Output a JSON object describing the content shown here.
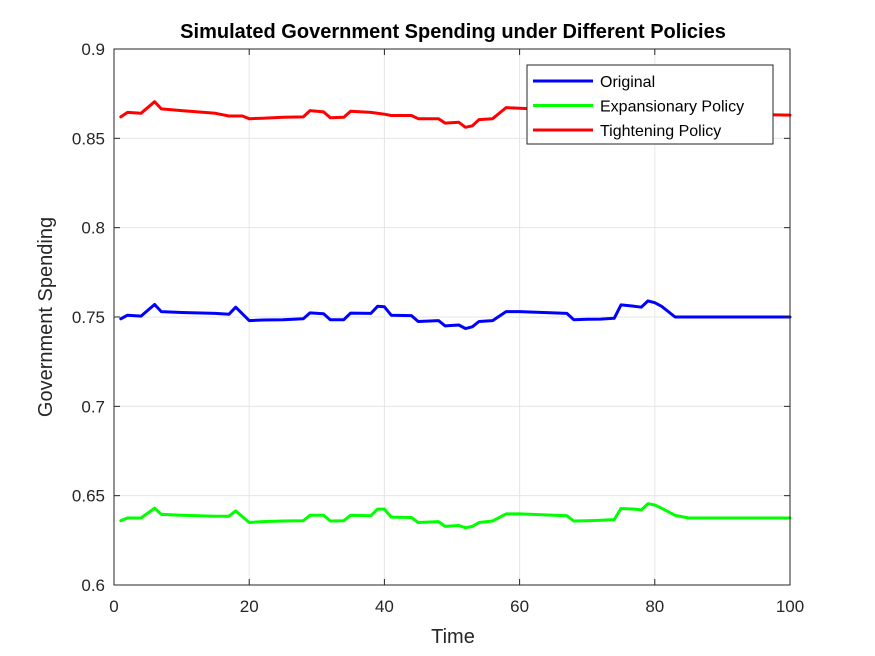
{
  "chart_data": {
    "type": "line",
    "title": "Simulated Government Spending under Different Policies",
    "xlabel": "Time",
    "ylabel": "Government Spending",
    "xlim": [
      0,
      100
    ],
    "ylim": [
      0.6,
      0.9
    ],
    "xticks": [
      "0",
      "20",
      "40",
      "60",
      "80",
      "100"
    ],
    "yticks": [
      "0.6",
      "0.65",
      "0.7",
      "0.75",
      "0.8",
      "0.85",
      "0.9"
    ],
    "grid": true,
    "legend_position": "top-right",
    "series": [
      {
        "name": "Original",
        "color": "#0000ff",
        "points": [
          [
            1,
            0.749
          ],
          [
            2,
            0.751
          ],
          [
            4,
            0.7505
          ],
          [
            6,
            0.757
          ],
          [
            7,
            0.753
          ],
          [
            10,
            0.7525
          ],
          [
            15,
            0.752
          ],
          [
            17,
            0.7515
          ],
          [
            18,
            0.7555
          ],
          [
            20,
            0.748
          ],
          [
            22,
            0.7483
          ],
          [
            25,
            0.7485
          ],
          [
            28,
            0.749
          ],
          [
            29,
            0.7523
          ],
          [
            31,
            0.7518
          ],
          [
            32,
            0.7485
          ],
          [
            34,
            0.7485
          ],
          [
            35,
            0.7522
          ],
          [
            38,
            0.752
          ],
          [
            39,
            0.756
          ],
          [
            40,
            0.7557
          ],
          [
            41,
            0.751
          ],
          [
            44,
            0.7508
          ],
          [
            45,
            0.7475
          ],
          [
            48,
            0.748
          ],
          [
            49,
            0.745
          ],
          [
            51,
            0.7455
          ],
          [
            52,
            0.7435
          ],
          [
            53,
            0.7445
          ],
          [
            54,
            0.7475
          ],
          [
            56,
            0.748
          ],
          [
            58,
            0.753
          ],
          [
            60,
            0.753
          ],
          [
            67,
            0.752
          ],
          [
            68,
            0.7485
          ],
          [
            70,
            0.7487
          ],
          [
            72,
            0.7488
          ],
          [
            74,
            0.7493
          ],
          [
            75,
            0.7568
          ],
          [
            77,
            0.756
          ],
          [
            78,
            0.7555
          ],
          [
            79,
            0.759
          ],
          [
            80,
            0.758
          ],
          [
            81,
            0.756
          ],
          [
            83,
            0.75
          ],
          [
            100,
            0.75
          ]
        ]
      },
      {
        "name": "Expansionary Policy",
        "color": "#00ff00",
        "points": [
          [
            1,
            0.636
          ],
          [
            2,
            0.6375
          ],
          [
            4,
            0.6375
          ],
          [
            6,
            0.643
          ],
          [
            7,
            0.6395
          ],
          [
            10,
            0.639
          ],
          [
            15,
            0.6385
          ],
          [
            17,
            0.6385
          ],
          [
            18,
            0.6415
          ],
          [
            20,
            0.635
          ],
          [
            22,
            0.6355
          ],
          [
            25,
            0.6358
          ],
          [
            28,
            0.636
          ],
          [
            29,
            0.639
          ],
          [
            31,
            0.639
          ],
          [
            32,
            0.6358
          ],
          [
            34,
            0.636
          ],
          [
            35,
            0.639
          ],
          [
            38,
            0.6388
          ],
          [
            39,
            0.6425
          ],
          [
            40,
            0.6425
          ],
          [
            41,
            0.638
          ],
          [
            44,
            0.6378
          ],
          [
            45,
            0.635
          ],
          [
            48,
            0.6355
          ],
          [
            49,
            0.6328
          ],
          [
            51,
            0.6333
          ],
          [
            52,
            0.632
          ],
          [
            53,
            0.6328
          ],
          [
            54,
            0.635
          ],
          [
            56,
            0.6358
          ],
          [
            58,
            0.6398
          ],
          [
            60,
            0.6398
          ],
          [
            67,
            0.6388
          ],
          [
            68,
            0.6358
          ],
          [
            70,
            0.636
          ],
          [
            72,
            0.6362
          ],
          [
            74,
            0.6366
          ],
          [
            75,
            0.6428
          ],
          [
            77,
            0.6425
          ],
          [
            78,
            0.642
          ],
          [
            79,
            0.6455
          ],
          [
            80,
            0.6448
          ],
          [
            81,
            0.643
          ],
          [
            83,
            0.639
          ],
          [
            85,
            0.6375
          ],
          [
            100,
            0.6375
          ]
        ]
      },
      {
        "name": "Tightening Policy",
        "color": "#ff0000",
        "points": [
          [
            1,
            0.862
          ],
          [
            2,
            0.8645
          ],
          [
            4,
            0.864
          ],
          [
            6,
            0.8705
          ],
          [
            7,
            0.8665
          ],
          [
            10,
            0.8655
          ],
          [
            15,
            0.864
          ],
          [
            17,
            0.8625
          ],
          [
            19,
            0.8625
          ],
          [
            20,
            0.861
          ],
          [
            22,
            0.8612
          ],
          [
            25,
            0.8618
          ],
          [
            28,
            0.862
          ],
          [
            29,
            0.8655
          ],
          [
            31,
            0.8648
          ],
          [
            32,
            0.8615
          ],
          [
            34,
            0.8618
          ],
          [
            35,
            0.8652
          ],
          [
            38,
            0.8645
          ],
          [
            40,
            0.8635
          ],
          [
            41,
            0.8628
          ],
          [
            44,
            0.8628
          ],
          [
            45,
            0.861
          ],
          [
            48,
            0.861
          ],
          [
            49,
            0.8585
          ],
          [
            51,
            0.859
          ],
          [
            52,
            0.8562
          ],
          [
            53,
            0.857
          ],
          [
            54,
            0.8605
          ],
          [
            56,
            0.861
          ],
          [
            58,
            0.8672
          ],
          [
            60,
            0.8668
          ],
          [
            75,
            0.8645
          ],
          [
            100,
            0.863
          ]
        ]
      }
    ]
  }
}
